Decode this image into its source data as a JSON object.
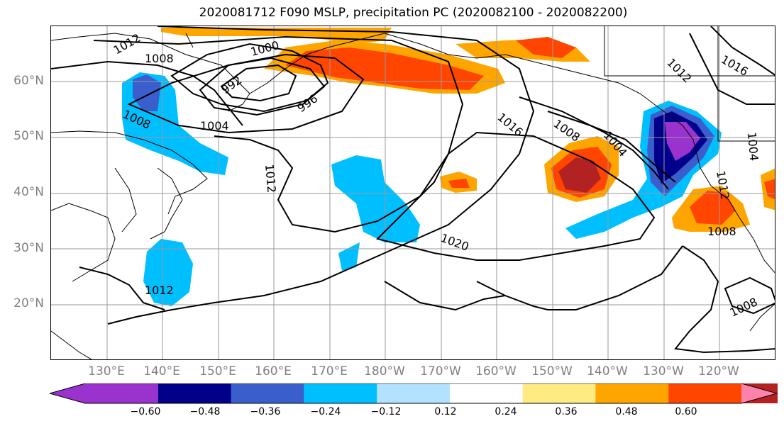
{
  "title": "2020081712 F090 MSLP, precipitation PC (2020082100 - 2020082200)",
  "lat_labels": [
    "60°N",
    "50°N",
    "40°N",
    "30°N",
    "20°N"
  ],
  "lon_labels": [
    "130°E",
    "140°E",
    "150°E",
    "160°E",
    "170°E",
    "180°W",
    "170°W",
    "160°W",
    "150°W",
    "140°W",
    "130°W",
    "120°W"
  ],
  "isobar_labels": [
    "1012",
    "1008",
    "1000",
    "992",
    "996",
    "1004",
    "1008",
    "1012",
    "1016",
    "1008",
    "1004",
    "1012",
    "1016",
    "1020",
    "1004",
    "1012",
    "1008",
    "1008",
    "1012"
  ],
  "colorbar": {
    "ticks": [
      "−0.60",
      "−0.48",
      "−0.36",
      "−0.24",
      "−0.12",
      "0.12",
      "0.24",
      "0.36",
      "0.48",
      "0.60"
    ],
    "colors": [
      "#9a32cd",
      "#00008b",
      "#3a5fcd",
      "#00bfff",
      "#b2e2ff",
      "#ffffff",
      "#ffeb82",
      "#ffa500",
      "#ff4500",
      "#b22222",
      "#ff82ab"
    ]
  }
}
